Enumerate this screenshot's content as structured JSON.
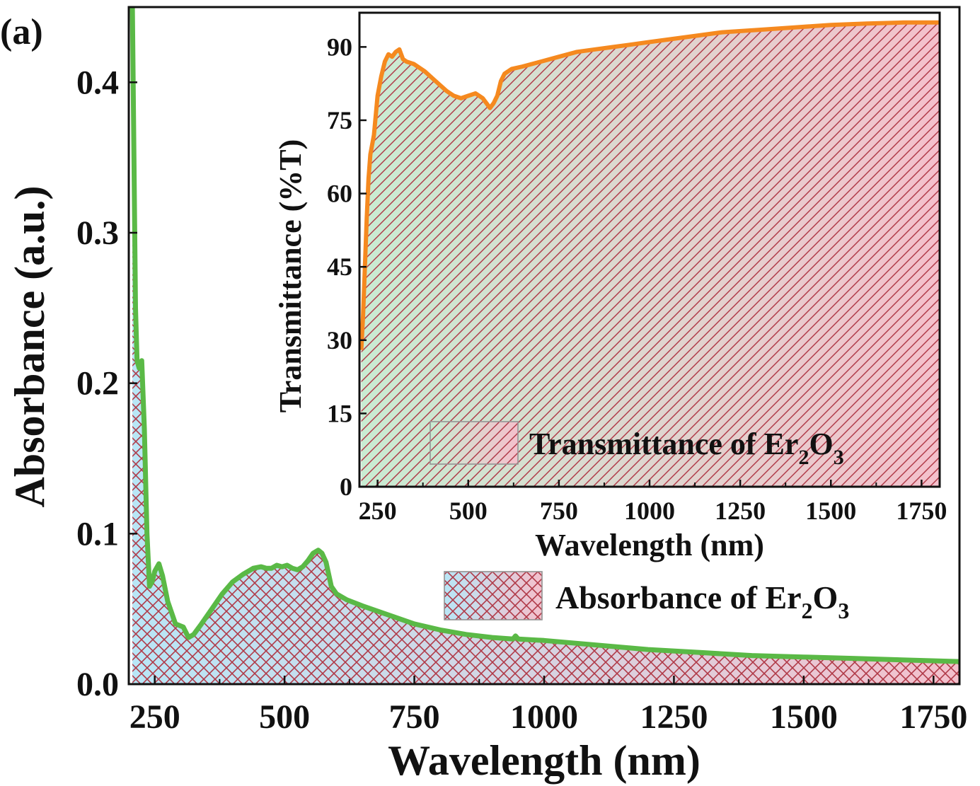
{
  "panel_label": "(a)",
  "colors": {
    "absorbance_line": "#5ab946",
    "transmittance_line": "#f5891f",
    "hatch": "#b03a48",
    "fill_blue": "#b9e6f6",
    "fill_green": "#c9ecd2",
    "fill_pink": "#f4c0cc"
  },
  "chart_data": [
    {
      "id": "main",
      "type": "area",
      "xlabel": "Wavelength (nm)",
      "ylabel": "Absorbance (a.u.)",
      "xlim": [
        200,
        1800
      ],
      "ylim": [
        0,
        0.45
      ],
      "xticks": [
        250,
        500,
        750,
        1000,
        1250,
        1500,
        1750
      ],
      "yticks": [
        0.0,
        0.1,
        0.2,
        0.3,
        0.4
      ],
      "ytick_labels": [
        "0.0",
        "0.1",
        "0.2",
        "0.3",
        "0.4"
      ],
      "grid": false,
      "legend_position": "lower-right",
      "series": [
        {
          "name": "Absorbance of Er2O3",
          "legend_label": {
            "prefix": "Absorbance of Er",
            "sub1": "2",
            "mid": "O",
            "sub2": "3"
          },
          "x": [
            207,
            210,
            213,
            216,
            220,
            225,
            230,
            235,
            240,
            245,
            250,
            258,
            265,
            275,
            290,
            305,
            315,
            325,
            340,
            360,
            380,
            400,
            420,
            440,
            455,
            465,
            475,
            485,
            495,
            505,
            515,
            525,
            535,
            545,
            555,
            565,
            572,
            580,
            590,
            600,
            620,
            650,
            700,
            750,
            800,
            850,
            900,
            940,
            945,
            950,
            1000,
            1100,
            1200,
            1300,
            1400,
            1500,
            1600,
            1700,
            1800
          ],
          "y": [
            0.45,
            0.35,
            0.25,
            0.215,
            0.21,
            0.215,
            0.17,
            0.1,
            0.065,
            0.068,
            0.075,
            0.08,
            0.072,
            0.055,
            0.04,
            0.038,
            0.031,
            0.033,
            0.04,
            0.05,
            0.06,
            0.068,
            0.073,
            0.077,
            0.078,
            0.077,
            0.077,
            0.079,
            0.078,
            0.079,
            0.077,
            0.076,
            0.078,
            0.082,
            0.087,
            0.089,
            0.087,
            0.081,
            0.065,
            0.06,
            0.056,
            0.052,
            0.046,
            0.04,
            0.036,
            0.033,
            0.031,
            0.03,
            0.032,
            0.03,
            0.029,
            0.026,
            0.023,
            0.021,
            0.019,
            0.018,
            0.017,
            0.016,
            0.015
          ]
        }
      ]
    },
    {
      "id": "inset",
      "type": "area",
      "xlabel": "Wavelength (nm)",
      "ylabel": "Transmittance (%T)",
      "xlim": [
        200,
        1800
      ],
      "ylim": [
        0,
        97
      ],
      "xticks": [
        250,
        500,
        750,
        1000,
        1250,
        1500,
        1750
      ],
      "yticks": [
        0,
        15,
        30,
        45,
        60,
        75,
        90
      ],
      "grid": false,
      "legend_position": "bottom-right",
      "series": [
        {
          "name": "Transmittance of Er2O3",
          "legend_label": {
            "prefix": "Transmittance of Er",
            "sub1": "2",
            "mid": "O",
            "sub2": "3"
          },
          "x": [
            205,
            210,
            215,
            220,
            225,
            230,
            240,
            250,
            260,
            270,
            280,
            290,
            300,
            310,
            320,
            330,
            350,
            380,
            410,
            440,
            460,
            480,
            500,
            520,
            530,
            540,
            550,
            560,
            570,
            580,
            590,
            600,
            620,
            650,
            700,
            750,
            800,
            850,
            900,
            1000,
            1100,
            1200,
            1300,
            1400,
            1500,
            1600,
            1700,
            1800
          ],
          "y": [
            28,
            35,
            45,
            55,
            63,
            68,
            72,
            80,
            84,
            87,
            88.5,
            88,
            89,
            89.5,
            87.5,
            87,
            86.5,
            85,
            83,
            81,
            80,
            79.5,
            80,
            80.5,
            80,
            79.5,
            78.5,
            77.5,
            78.5,
            80,
            83,
            84.5,
            85.5,
            86,
            87,
            88,
            89,
            89.5,
            90,
            91,
            92,
            93,
            93.5,
            94,
            94.5,
            94.8,
            95,
            95
          ]
        }
      ]
    }
  ]
}
